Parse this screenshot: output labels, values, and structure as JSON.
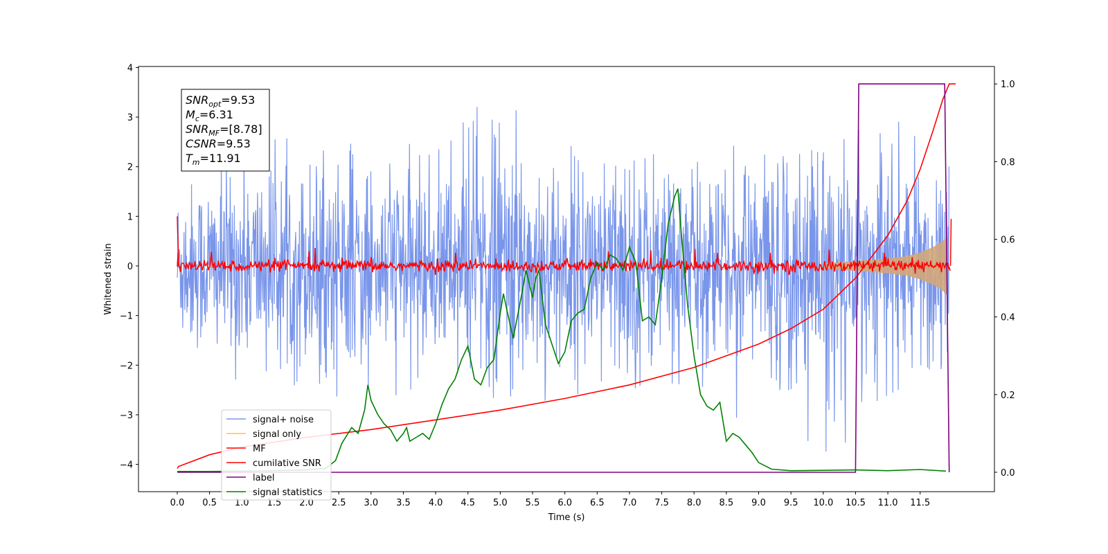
{
  "chart_data": {
    "type": "line",
    "xlabel": "Time (s)",
    "ylabel": "Whitened strain",
    "xlim": [
      -0.6,
      12.65
    ],
    "ylim": [
      -4.55,
      4.02
    ],
    "y2lim": [
      -0.05,
      1.045
    ],
    "xticks": [
      "0.0",
      "0.5",
      "1.0",
      "1.5",
      "2.0",
      "2.5",
      "3.0",
      "3.5",
      "4.0",
      "4.5",
      "5.0",
      "5.5",
      "6.0",
      "6.5",
      "7.0",
      "7.5",
      "8.0",
      "8.5",
      "9.0",
      "9.5",
      "10.0",
      "10.5",
      "11.0",
      "11.5"
    ],
    "yticks": [
      "4",
      "3",
      "2",
      "1",
      "0",
      "−1",
      "−2",
      "−3",
      "−4"
    ],
    "y2ticks": [
      "1.0",
      "0.8",
      "0.6",
      "0.4",
      "0.2",
      "0.0"
    ],
    "annotation": {
      "lines": [
        {
          "base": "SNR",
          "sub": "opt",
          "rest": "=9.53"
        },
        {
          "base": "M",
          "sub": "c",
          "rest": "=6.31"
        },
        {
          "base": "SNR",
          "sub": "MF",
          "rest": "=[8.78]"
        },
        {
          "base": "CSNR",
          "sub": "",
          "rest": "=9.53"
        },
        {
          "base": "T",
          "sub": "m",
          "rest": "=11.91"
        }
      ]
    },
    "legend": {
      "placement": "lower-left",
      "entries": [
        {
          "label": "signal+ noise",
          "color": "#4169e1"
        },
        {
          "label": "signal only",
          "color": "#ffc04d"
        },
        {
          "label": "MF",
          "color": "#ff0000"
        },
        {
          "label": "cumilative SNR",
          "color": "#ff0000"
        },
        {
          "label": "label",
          "color": "#800080"
        },
        {
          "label": "signal statistics",
          "color": "#008000"
        }
      ]
    },
    "series": [
      {
        "name": "signal+ noise",
        "axis": "left",
        "color": "#4169e1",
        "alpha": 0.7,
        "envelope_x": [
          0,
          1,
          2,
          3,
          4,
          5,
          6,
          7,
          8,
          9,
          10,
          11,
          11.95
        ],
        "envelope_upper": [
          2.1,
          2.5,
          2.6,
          2.4,
          2.5,
          3.6,
          2.7,
          2.9,
          2.3,
          2.5,
          2.3,
          3.1,
          2.0
        ],
        "envelope_lower": [
          -1.9,
          -2.5,
          -2.6,
          -2.8,
          -2.3,
          -3.2,
          -2.5,
          -2.9,
          -2.6,
          -3.3,
          -4.1,
          -2.6,
          -2.0
        ]
      },
      {
        "name": "signal only",
        "axis": "left",
        "color": "#d2a679",
        "alpha": 0.9,
        "x": [
          10.0,
          10.5,
          11.0,
          11.3,
          11.5,
          11.7,
          11.85,
          11.93
        ],
        "amplitude": [
          0.05,
          0.1,
          0.15,
          0.2,
          0.27,
          0.38,
          0.5,
          0.6
        ]
      },
      {
        "name": "MF",
        "axis": "left",
        "color": "#ff0000",
        "band": [
          -0.18,
          0.18
        ],
        "spikes_x": [
          0.0,
          11.97
        ],
        "spikes_y": [
          1.0,
          0.95
        ]
      },
      {
        "name": "cumilative SNR",
        "axis": "right",
        "color": "#ff0000",
        "x": [
          0,
          0.02,
          0.5,
          1,
          2,
          3,
          4,
          5,
          6,
          7,
          8,
          9,
          9.5,
          10,
          10.5,
          11,
          11.3,
          11.5,
          11.7,
          11.85,
          11.95,
          12.0,
          12.05
        ],
        "values": [
          0.01,
          0.015,
          0.045,
          0.065,
          0.09,
          0.11,
          0.135,
          0.16,
          0.19,
          0.225,
          0.27,
          0.33,
          0.37,
          0.42,
          0.5,
          0.61,
          0.7,
          0.78,
          0.88,
          0.96,
          1.0,
          1.0,
          1.0
        ]
      },
      {
        "name": "label",
        "axis": "right",
        "color": "#800080",
        "x": [
          0,
          10.5,
          10.55,
          11.88,
          11.95
        ],
        "values": [
          0,
          0,
          1,
          1,
          0
        ]
      },
      {
        "name": "signal statistics",
        "axis": "right",
        "color": "#008000",
        "x": [
          0,
          0.5,
          1.0,
          1.5,
          2.0,
          2.2,
          2.3,
          2.45,
          2.55,
          2.7,
          2.8,
          2.9,
          2.95,
          3.0,
          3.1,
          3.2,
          3.3,
          3.4,
          3.5,
          3.55,
          3.6,
          3.7,
          3.8,
          3.9,
          4.0,
          4.1,
          4.2,
          4.3,
          4.4,
          4.5,
          4.6,
          4.7,
          4.8,
          4.9,
          5.0,
          5.05,
          5.1,
          5.2,
          5.3,
          5.4,
          5.5,
          5.55,
          5.6,
          5.7,
          5.8,
          5.9,
          6.0,
          6.1,
          6.2,
          6.3,
          6.4,
          6.5,
          6.6,
          6.7,
          6.8,
          6.9,
          7.0,
          7.1,
          7.2,
          7.3,
          7.4,
          7.5,
          7.6,
          7.7,
          7.75,
          7.8,
          7.9,
          8.0,
          8.1,
          8.2,
          8.3,
          8.4,
          8.5,
          8.6,
          8.7,
          8.8,
          8.9,
          9.0,
          9.2,
          9.5,
          10.0,
          10.5,
          11.0,
          11.5,
          11.9
        ],
        "values": [
          0.002,
          0.002,
          0.003,
          0.004,
          0.006,
          0.009,
          0.01,
          0.03,
          0.075,
          0.115,
          0.1,
          0.16,
          0.225,
          0.185,
          0.15,
          0.125,
          0.11,
          0.08,
          0.1,
          0.115,
          0.08,
          0.09,
          0.1,
          0.085,
          0.125,
          0.175,
          0.215,
          0.24,
          0.29,
          0.325,
          0.24,
          0.225,
          0.27,
          0.29,
          0.41,
          0.46,
          0.42,
          0.345,
          0.43,
          0.52,
          0.45,
          0.5,
          0.52,
          0.38,
          0.33,
          0.28,
          0.31,
          0.39,
          0.41,
          0.42,
          0.5,
          0.54,
          0.52,
          0.56,
          0.55,
          0.52,
          0.58,
          0.54,
          0.39,
          0.4,
          0.38,
          0.5,
          0.64,
          0.71,
          0.73,
          0.62,
          0.43,
          0.3,
          0.2,
          0.17,
          0.16,
          0.18,
          0.08,
          0.1,
          0.09,
          0.07,
          0.05,
          0.025,
          0.008,
          0.004,
          0.005,
          0.006,
          0.004,
          0.007,
          0.003
        ]
      }
    ]
  }
}
